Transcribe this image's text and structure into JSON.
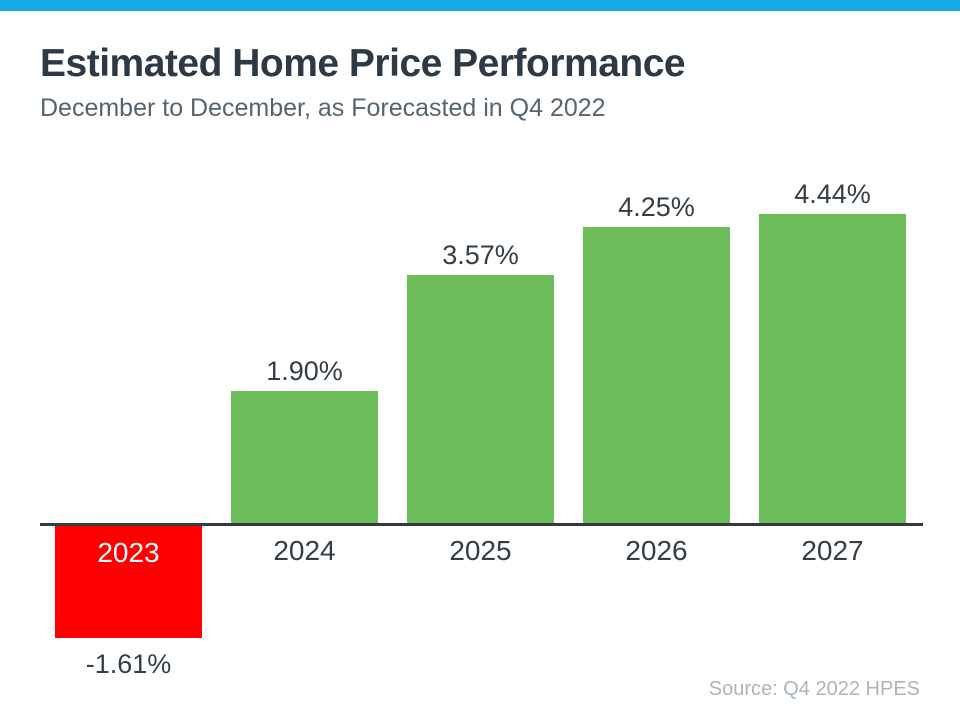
{
  "page": {
    "title": "Estimated Home Price Performance",
    "subtitle": "December to December, as Forecasted in Q4 2022",
    "source": "Source: Q4 2022 HPES",
    "accent_bar_color": "#14abe8"
  },
  "chart_data": {
    "type": "bar",
    "title": "Estimated Home Price Performance",
    "subtitle": "December to December, as Forecasted in Q4 2022",
    "categories": [
      "2023",
      "2024",
      "2025",
      "2026",
      "2027"
    ],
    "values": [
      -1.61,
      1.9,
      3.57,
      4.25,
      4.44
    ],
    "value_labels": [
      "-1.61%",
      "1.90%",
      "3.57%",
      "4.25%",
      "4.44%"
    ],
    "xlabel": "",
    "ylabel": "",
    "ylim": [
      -2,
      5
    ],
    "grid": false,
    "legend": false,
    "positive_color": "#6dbe5b",
    "negative_color": "#fe0000",
    "axis_color": "#343c42",
    "source": "Source: Q4 2022 HPES"
  }
}
